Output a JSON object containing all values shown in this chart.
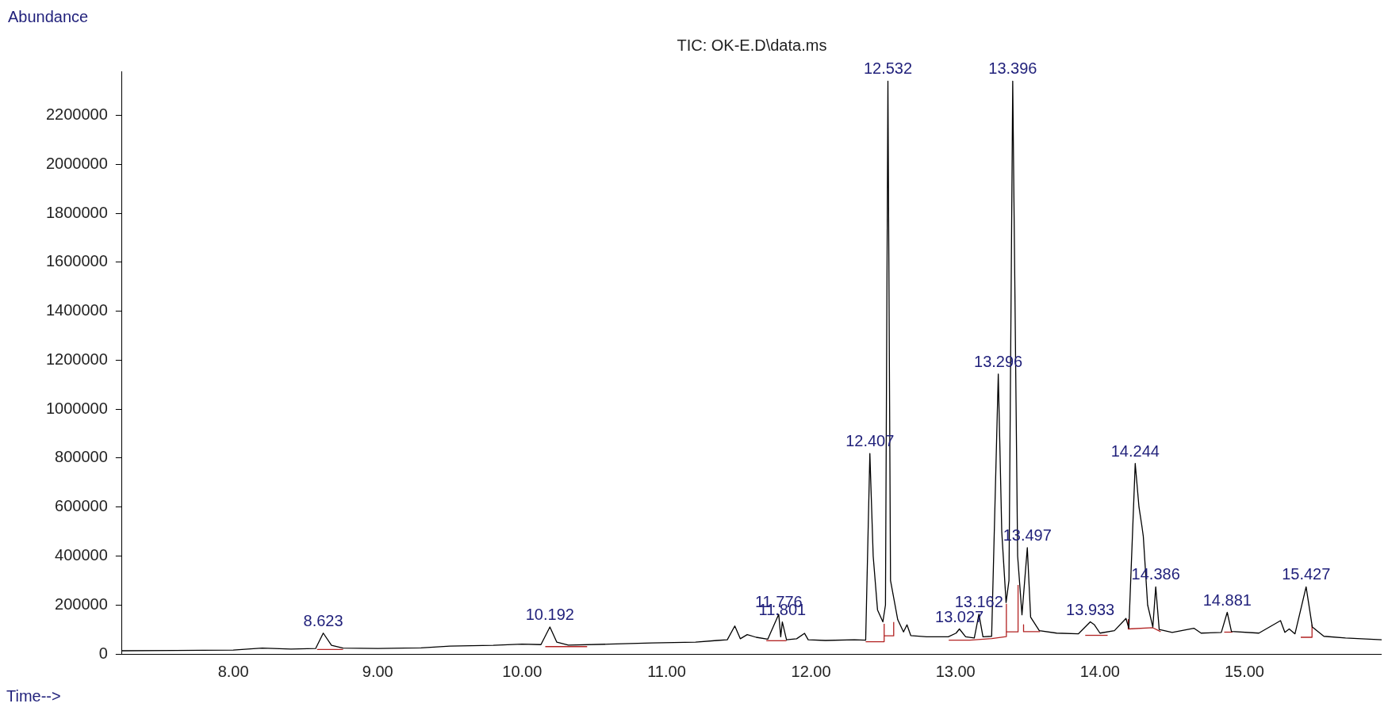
{
  "chart_data": {
    "type": "line",
    "title": "TIC: OK-E.D\\data.ms",
    "xlabel": "Time-->",
    "ylabel": "Abundance",
    "marker": "none",
    "xlim": [
      7.23,
      15.95
    ],
    "xticks": [
      {
        "value": 8,
        "label": "8.00"
      },
      {
        "value": 9,
        "label": "9.00"
      },
      {
        "value": 10,
        "label": "10.00"
      },
      {
        "value": 11,
        "label": "11.00"
      },
      {
        "value": 12,
        "label": "12.00"
      },
      {
        "value": 13,
        "label": "13.00"
      },
      {
        "value": 14,
        "label": "14.00"
      },
      {
        "value": 15,
        "label": "15.00"
      }
    ],
    "ylim": [
      0,
      2380000
    ],
    "yticks": [
      0,
      200000,
      400000,
      600000,
      800000,
      1000000,
      1200000,
      1400000,
      1600000,
      1800000,
      2000000,
      2200000
    ],
    "series": [
      {
        "type": "line",
        "color": "#000000",
        "x": [
          7.23,
          7.6,
          8.0,
          8.2,
          8.4,
          8.57,
          8.623,
          8.68,
          8.76,
          9.0,
          9.3,
          9.5,
          9.8,
          10.0,
          10.13,
          10.192,
          10.24,
          10.32,
          10.6,
          10.9,
          11.2,
          11.35,
          11.42,
          11.472,
          11.51,
          11.558,
          11.62,
          11.7,
          11.776,
          11.79,
          11.801,
          11.83,
          11.9,
          11.955,
          11.98,
          12.1,
          12.3,
          12.378,
          12.407,
          12.43,
          12.46,
          12.497,
          12.515,
          12.532,
          12.55,
          12.6,
          12.64,
          12.664,
          12.69,
          12.8,
          12.95,
          13.004,
          13.027,
          13.07,
          13.13,
          13.162,
          13.19,
          13.25,
          13.296,
          13.32,
          13.35,
          13.37,
          13.396,
          13.43,
          13.46,
          13.497,
          13.52,
          13.58,
          13.7,
          13.85,
          13.933,
          13.96,
          14.0,
          14.1,
          14.18,
          14.2,
          14.244,
          14.27,
          14.29,
          14.3,
          14.33,
          14.366,
          14.386,
          14.41,
          14.5,
          14.65,
          14.7,
          14.84,
          14.881,
          14.91,
          15.1,
          15.25,
          15.28,
          15.31,
          15.35,
          15.427,
          15.47,
          15.55,
          15.7,
          15.95
        ],
        "values": [
          13000,
          14000,
          16000,
          24000,
          20000,
          22000,
          85000,
          35000,
          24000,
          22000,
          25000,
          32000,
          35000,
          40000,
          38000,
          110000,
          48000,
          36000,
          40000,
          45000,
          48000,
          55000,
          58000,
          114000,
          62000,
          79000,
          68000,
          60000,
          162000,
          70000,
          131000,
          58000,
          62000,
          84000,
          58000,
          55000,
          58000,
          56000,
          819000,
          400000,
          180000,
          131000,
          200000,
          2340000,
          300000,
          140000,
          90000,
          119000,
          75000,
          70000,
          70000,
          85000,
          102000,
          70000,
          65000,
          162000,
          70000,
          72000,
          1143000,
          500000,
          210000,
          300000,
          2340000,
          400000,
          160000,
          434000,
          150000,
          95000,
          85000,
          82000,
          131000,
          120000,
          85000,
          95000,
          145000,
          105000,
          778000,
          600000,
          523000,
          480000,
          200000,
          110000,
          274000,
          100000,
          88000,
          105000,
          85000,
          88000,
          170000,
          92000,
          85000,
          136000,
          88000,
          102000,
          82000,
          274000,
          110000,
          72000,
          65000,
          58000
        ]
      },
      {
        "type": "line",
        "color": "#b22222",
        "x": [
          8.58,
          8.76
        ],
        "values": [
          18000,
          18000
        ]
      },
      {
        "type": "line",
        "color": "#b22222",
        "x": [
          10.16,
          10.45
        ],
        "values": [
          30000,
          30000
        ]
      },
      {
        "type": "line",
        "color": "#b22222",
        "x": [
          11.69,
          11.83
        ],
        "values": [
          54000,
          54000
        ]
      },
      {
        "type": "line",
        "color": "#b22222",
        "x": [
          12.378,
          12.506,
          12.506
        ],
        "values": [
          50000,
          50000,
          123000
        ]
      },
      {
        "type": "line",
        "color": "#b22222",
        "x": [
          12.506,
          12.572,
          12.572
        ],
        "values": [
          74000,
          74000,
          130000
        ]
      },
      {
        "type": "line",
        "color": "#b22222",
        "x": [
          12.953,
          13.099,
          13.251,
          13.352,
          13.352
        ],
        "values": [
          56000,
          56000,
          63000,
          71000,
          205000
        ]
      },
      {
        "type": "line",
        "color": "#b22222",
        "x": [
          13.352,
          13.433,
          13.433
        ],
        "values": [
          90000,
          90000,
          282000
        ]
      },
      {
        "type": "line",
        "color": "#b22222",
        "x": [
          13.471,
          13.471,
          13.585
        ],
        "values": [
          119000,
          91000,
          91000
        ]
      },
      {
        "type": "line",
        "color": "#b22222",
        "x": [
          13.898,
          14.053
        ],
        "values": [
          76000,
          76000
        ]
      },
      {
        "type": "line",
        "color": "#b22222",
        "x": [
          14.196,
          14.196,
          14.366,
          14.42
        ],
        "values": [
          140000,
          102000,
          107000,
          91000
        ]
      },
      {
        "type": "line",
        "color": "#b22222",
        "x": [
          14.86,
          14.917
        ],
        "values": [
          89000,
          89000
        ]
      },
      {
        "type": "line",
        "color": "#b22222",
        "x": [
          15.39,
          15.468,
          15.468
        ],
        "values": [
          68000,
          68000,
          120000
        ]
      }
    ],
    "annotations": [
      {
        "text": "8.623",
        "x": 8.623,
        "y": 85000
      },
      {
        "text": "10.192",
        "x": 10.192,
        "y": 110000
      },
      {
        "text": "11.776",
        "x": 11.776,
        "y": 162000
      },
      {
        "text": "11.801",
        "x": 11.801,
        "y": 131000
      },
      {
        "text": "12.407",
        "x": 12.407,
        "y": 819000
      },
      {
        "text": "12.532",
        "x": 12.532,
        "y": 2340000
      },
      {
        "text": "13.027",
        "x": 13.027,
        "y": 102000
      },
      {
        "text": "13.162",
        "x": 13.162,
        "y": 162000
      },
      {
        "text": "13.296",
        "x": 13.296,
        "y": 1143000
      },
      {
        "text": "13.396",
        "x": 13.396,
        "y": 2340000
      },
      {
        "text": "13.497",
        "x": 13.497,
        "y": 434000
      },
      {
        "text": "13.933",
        "x": 13.933,
        "y": 131000
      },
      {
        "text": "14.244",
        "x": 14.244,
        "y": 778000
      },
      {
        "text": "14.386",
        "x": 14.386,
        "y": 274000
      },
      {
        "text": "14.881",
        "x": 14.881,
        "y": 170000
      },
      {
        "text": "15.427",
        "x": 15.427,
        "y": 274000
      }
    ]
  }
}
